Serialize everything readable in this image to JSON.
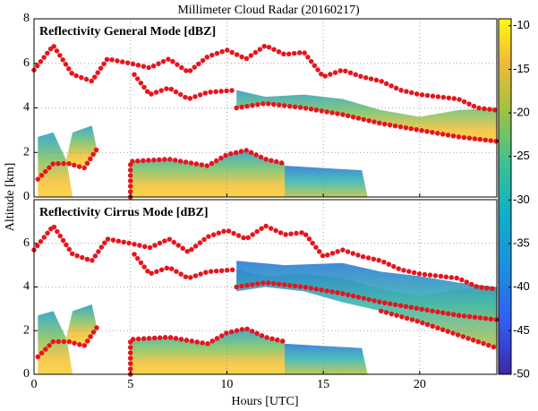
{
  "chart_data": {
    "type": "heatmap",
    "title": "Millimeter Cloud Radar (20160217)",
    "xlabel": "Hours [UTC]",
    "ylabel": "Altitude [km]",
    "xlim": [
      0,
      24
    ],
    "xticks": [
      0,
      5,
      10,
      15,
      20
    ],
    "grid": true,
    "colorbar": {
      "lim": [
        -50,
        -9.2
      ],
      "ticks": [
        -10,
        -15,
        -20,
        -25,
        -30,
        -35,
        -40,
        -45,
        -50
      ]
    },
    "panels": [
      {
        "title": "Reflectivity General Mode [dBZ]",
        "ylim": [
          0,
          8
        ],
        "yticks": [
          0,
          2,
          4,
          6,
          8
        ]
      },
      {
        "title": "Reflectivity Cirrus Mode [dBZ]",
        "ylim": [
          0,
          8
        ],
        "yticks": [
          0,
          2,
          4,
          6
        ]
      }
    ]
  }
}
